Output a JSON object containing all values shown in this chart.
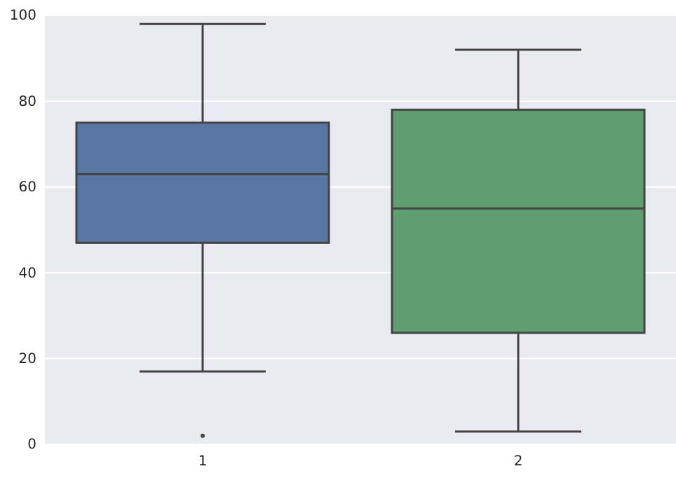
{
  "chart_data": {
    "type": "box",
    "categories": [
      "1",
      "2"
    ],
    "boxes": [
      {
        "low": 17,
        "q1": 47,
        "median": 63,
        "q3": 75,
        "high": 98,
        "outliers": [
          2
        ]
      },
      {
        "low": 3,
        "q1": 26,
        "median": 55,
        "q3": 78,
        "high": 92
      }
    ],
    "colors": [
      "#5875a4",
      "#5f9e6e"
    ],
    "ylim": [
      0,
      100
    ],
    "yticks": [
      0,
      20,
      40,
      60,
      80,
      100
    ],
    "grid": "y"
  }
}
